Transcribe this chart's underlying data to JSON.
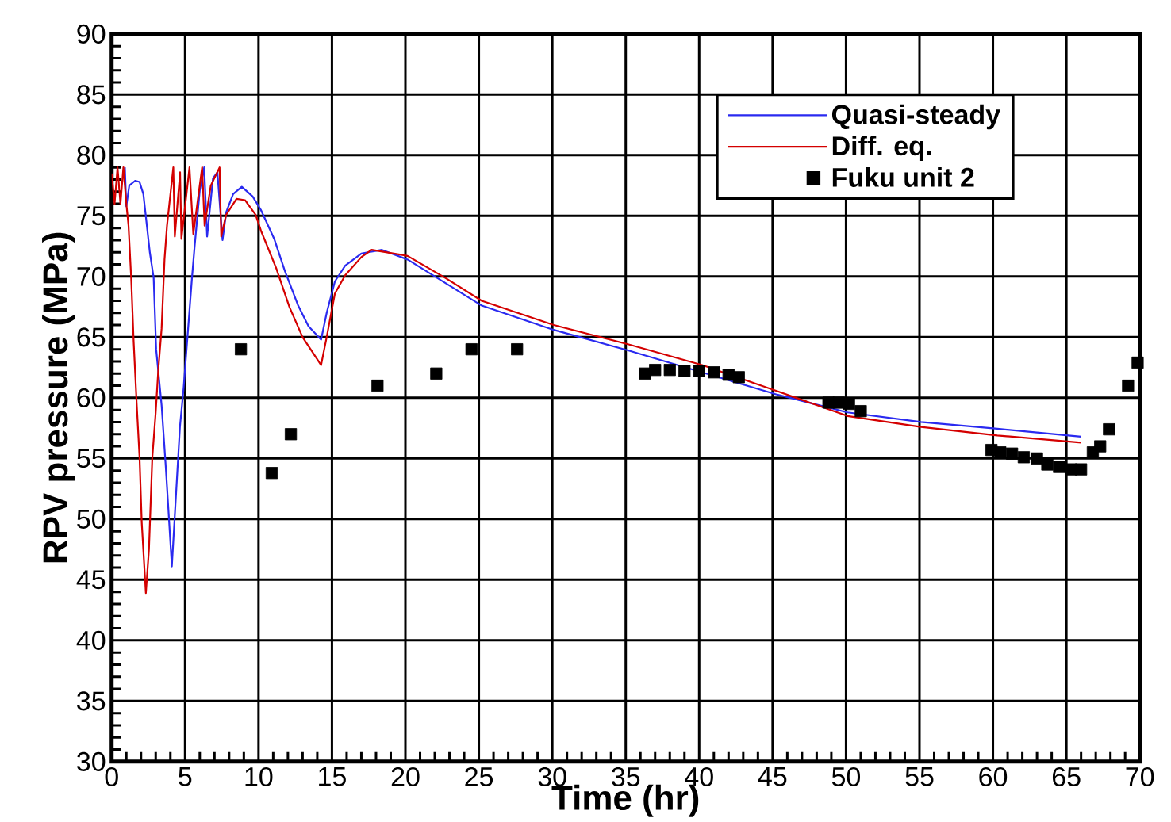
{
  "chart_data": {
    "type": "line",
    "xlabel": "Time (hr)",
    "ylabel": "RPV pressure (MPa)",
    "xlim": [
      0,
      70
    ],
    "ylim": [
      30,
      90
    ],
    "xticks": [
      0,
      5,
      10,
      15,
      20,
      25,
      30,
      35,
      40,
      45,
      50,
      55,
      60,
      65,
      70
    ],
    "yticks": [
      30,
      35,
      40,
      45,
      50,
      55,
      60,
      65,
      70,
      75,
      80,
      85,
      90
    ],
    "grid": true,
    "legend": "top right",
    "series": [
      {
        "name": "Quasi-steady",
        "color": "#2a2af0",
        "marker": "none",
        "x": [
          0.9,
          1.0,
          1.2,
          1.6,
          1.9,
          2.16,
          2.6,
          2.86,
          3.03,
          3.4,
          3.67,
          3.84,
          4.1,
          4.3,
          4.65,
          4.9,
          5.1,
          5.47,
          5.65,
          6.0,
          6.3,
          6.5,
          6.9,
          7.2,
          7.55,
          7.8,
          8.27,
          8.86,
          9.6,
          10.16,
          11.07,
          11.78,
          12.7,
          13.4,
          14.26,
          14.64,
          15.2,
          15.9,
          17.0,
          18.4,
          20.15,
          25.2,
          30.1,
          35.2,
          40.2,
          45.2,
          50.1,
          55.1,
          60.3,
          66.0
        ],
        "values": [
          79.0,
          75.8,
          77.5,
          77.9,
          77.8,
          76.8,
          72.0,
          69.9,
          64.0,
          59.4,
          54.6,
          51.3,
          46.1,
          50.3,
          57.6,
          60.8,
          64.0,
          69.9,
          72.5,
          77.1,
          79.0,
          73.3,
          78.1,
          78.6,
          73.0,
          75.3,
          76.8,
          77.4,
          76.6,
          75.5,
          73.1,
          70.5,
          67.6,
          65.9,
          64.8,
          67.0,
          69.6,
          70.9,
          71.9,
          72.2,
          71.4,
          67.6,
          65.6,
          63.9,
          62.1,
          60.3,
          58.8,
          58.0,
          57.45,
          56.8
        ]
      },
      {
        "name": "Diff. eq.",
        "color": "#d40000",
        "marker": "none",
        "x": [
          0.0,
          0.2,
          0.4,
          0.6,
          0.8,
          1.0,
          1.15,
          1.33,
          1.5,
          1.7,
          1.9,
          2.05,
          2.33,
          2.54,
          2.77,
          3.0,
          3.17,
          3.4,
          3.6,
          3.77,
          4.2,
          4.3,
          4.66,
          4.75,
          5.3,
          5.56,
          6.16,
          6.33,
          6.75,
          7.35,
          7.46,
          7.8,
          8.5,
          9.08,
          9.8,
          10.16,
          11.2,
          12.1,
          13.0,
          14.26,
          14.64,
          15.2,
          15.9,
          17.0,
          17.7,
          20.15,
          22.7,
          25.2,
          30.1,
          35.2,
          40.2,
          45.2,
          50.1,
          55.1,
          60.3,
          66.0
        ],
        "values": [
          78.5,
          76.0,
          79.0,
          76.0,
          79.0,
          76.0,
          74.2,
          69.9,
          64.6,
          59.6,
          55.1,
          49.7,
          43.9,
          47.5,
          55.1,
          58.8,
          62.2,
          65.7,
          71.4,
          74.2,
          79.0,
          73.3,
          78.6,
          73.1,
          79.0,
          73.5,
          79.0,
          74.2,
          77.5,
          79.0,
          73.3,
          75.1,
          76.4,
          76.3,
          75.1,
          73.8,
          70.7,
          67.5,
          65.0,
          62.7,
          65.0,
          68.6,
          70.1,
          71.6,
          72.2,
          71.7,
          69.9,
          68.0,
          66.0,
          64.4,
          62.7,
          60.6,
          58.5,
          57.6,
          56.9,
          56.3
        ]
      },
      {
        "name": "Fuku unit 2",
        "color": "#000000",
        "type": "scatter",
        "marker": "square",
        "x": [
          8.8,
          10.9,
          12.2,
          18.1,
          22.1,
          24.5,
          27.6,
          36.3,
          37.0,
          38.0,
          39.0,
          40.0,
          41.0,
          42.0,
          42.7,
          48.8,
          49.5,
          50.2,
          51.0,
          59.9,
          60.5,
          61.3,
          62.1,
          63.0,
          63.7,
          64.5,
          65.3,
          66.0,
          66.8,
          67.3,
          67.9,
          69.2,
          69.85
        ],
        "values": [
          64.0,
          53.8,
          57.0,
          61.0,
          62.0,
          64.0,
          64.0,
          62.0,
          62.3,
          62.3,
          62.2,
          62.2,
          62.1,
          61.9,
          61.7,
          59.6,
          59.6,
          59.5,
          58.9,
          55.7,
          55.5,
          55.4,
          55.1,
          55.0,
          54.5,
          54.3,
          54.1,
          54.1,
          55.5,
          56.0,
          57.4,
          61.0,
          62.9
        ]
      }
    ]
  }
}
